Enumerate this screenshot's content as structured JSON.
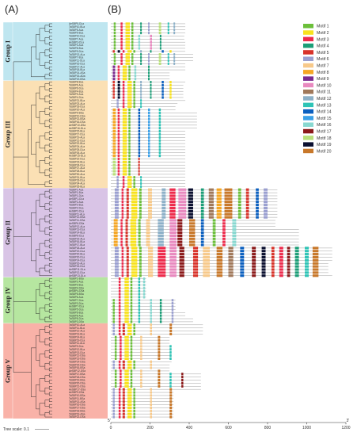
{
  "panels": {
    "a": "(A)",
    "b": "(B)"
  },
  "groups": [
    {
      "name": "Group I",
      "start": 0,
      "count": 19,
      "color": "#bfe6f0"
    },
    {
      "name": "Group III",
      "start": 19,
      "count": 35,
      "color": "#fbe0b4"
    },
    {
      "name": "Group II",
      "start": 54,
      "count": 29,
      "color": "#d9c4e6"
    },
    {
      "name": "Group IV",
      "start": 83,
      "count": 15,
      "color": "#b6e6a0"
    },
    {
      "name": "Group V",
      "start": 98,
      "count": 31,
      "color": "#f9b2a8"
    }
  ],
  "taxa": [
    "AeSBP5-DLa",
    "TaSBP10-BLa",
    "TaSBP5-ALa",
    "TaSBP5-BLa",
    "TaSBP10-DLa",
    "TaSBP7-ALa",
    "AeSBP3-DLa",
    "TaSBP3-ALa",
    "TaSBP8-BLa",
    "TaSBP9-DLa",
    "TaSBP13-ALa",
    "TaSBP7-BLa",
    "TaSBP11-DLa",
    "TaSBP16-DLa",
    "TaSBP17-ALa",
    "TaSBP18-BLa",
    "TaSBP14-ASa",
    "TaSBP15-ADa",
    "TaSBP19-BSa",
    "TaSBP8-BLa",
    "TaSBP6-ALa",
    "TaSBP6-DLa",
    "TaSBP4-BLa",
    "TaSBP9-ALa",
    "TaSBP4-DLa",
    "TaSBP21-BLa",
    "TaSBP23-ALa",
    "TaSBP18-DLa",
    "TaSBP20-ALa",
    "TaSBP9-BSa",
    "TaSBP10-DSa",
    "TaSBP13-BSa",
    "TaSBP16-DSa",
    "AeSBP10-DSa",
    "AeSBP16-DLa",
    "TaSBP15-BLa",
    "TaSBP17-DLa",
    "TaSBP19-ALa",
    "TaSBP21-DLa",
    "TaSBP22-BLa",
    "TaSBP24-ALa",
    "TaSBP25-DLa",
    "TaSBP26-ALa",
    "AeSBP15-DLa",
    "TaSBP22-DLa",
    "TaSBP23-BLa",
    "TaSBP24-DLa",
    "TaSBP27-ALa",
    "TaSBP28-BLa",
    "TaSBP30-ALa",
    "TaSBP31-BLa",
    "TaSBP33-DLa",
    "TaSBP34-ALa",
    "TaSBP35-BLa",
    "TaSBP1-ALa",
    "TaSBP1-BLa",
    "TaSBP1-DLa",
    "AeSBP1-DLa",
    "TaSBP2-ALa",
    "TaSBP2-BLa",
    "TaSBP2-DLa",
    "AeSBP2-DLa",
    "TaSBP11-ALa",
    "TaSBP12-BSa",
    "TaSBP11-DSa",
    "AeSBP6-DSa",
    "TaSBP12-ALa",
    "TaSBP13-DLa",
    "TaSBP14-BLa",
    "AeSBP8-DLa",
    "TaSBP15-ALa",
    "TaSBP16-BLa",
    "TaSBP17-BLa",
    "TaSBP18-ALa",
    "TaSBP19-DLa",
    "TaSBP20-BLa",
    "TaSBP20-DLa",
    "TaSBP14-DLa",
    "TaSBP16-ALa",
    "TaSBP15-DLa",
    "AeSBP11-DLa",
    "TaSBP12-DLa",
    "AeSBP13-DLa",
    "TaSBP1-BSa",
    "TaSBP2-ALa",
    "TaSBP3-BLa",
    "TaSBP4-DSa",
    "AeSBP4-DSa",
    "TaSBP5-BSa",
    "TaSBP6-ALa",
    "TaSBP7-DLa",
    "TaSBP3-DLa",
    "AeSBP7-DLa",
    "TaSBP5-DLa",
    "TaSBP6-BLa",
    "TaSBP8-ALa",
    "TaSBP8-DLa",
    "TaSBP3-DSa",
    "TaSBP10-ALa",
    "TaSBP11-BLa",
    "TaSBP12-ALa",
    "TaSBP13-BLa",
    "TaSBP14-BLa",
    "TaSBP19-DLa",
    "TaSBP11-ALa",
    "TaSBP9-DLa",
    "TaSBP12-BLa",
    "TaSBP13-DLa",
    "TaSBP12-DSa",
    "TaSBP13-DSa",
    "TaSBP14-DSa",
    "TaSBP15-DSa",
    "TaSBP16-BSa",
    "AeSBP12-DSa",
    "TaSBP17-BSa",
    "TaSBP18-DSa",
    "TaSBP19-BSa",
    "TaSBP20-DSa",
    "TaSBP21-DSa",
    "AeSBP17-DSa",
    "AeSBP9-DSa",
    "TaSBP10-BSa",
    "TaSBP11-BSa",
    "TaSBP13-ASa",
    "TaSBP16-DSa",
    "TaSBP17-DSa",
    "TaSBP18-BSa",
    "TaSBP19-ASa",
    "TaSBP22-DSa"
  ],
  "gene_lengths": [
    380,
    380,
    380,
    380,
    375,
    375,
    380,
    380,
    380,
    380,
    420,
    420,
    420,
    380,
    380,
    380,
    300,
    300,
    300,
    380,
    370,
    370,
    370,
    370,
    370,
    380,
    340,
    330,
    330,
    440,
    440,
    440,
    440,
    440,
    440,
    380,
    380,
    380,
    380,
    380,
    380,
    380,
    380,
    380,
    380,
    380,
    380,
    380,
    380,
    380,
    380,
    380,
    380,
    380,
    850,
    850,
    850,
    850,
    850,
    850,
    850,
    850,
    850,
    850,
    840,
    840,
    840,
    960,
    960,
    960,
    960,
    960,
    960,
    1130,
    1130,
    1130,
    1130,
    1130,
    1110,
    1110,
    1110,
    1110,
    1130,
    180,
    180,
    180,
    180,
    180,
    180,
    180,
    330,
    330,
    330,
    330,
    380,
    380,
    420,
    420,
    470,
    470,
    470,
    470,
    300,
    300,
    300,
    310,
    310,
    310,
    310,
    310,
    310,
    300,
    300,
    300,
    460,
    460,
    460,
    460,
    460,
    460,
    320,
    320,
    320,
    320,
    320,
    320,
    320,
    320,
    320
  ],
  "motif_layouts": [
    [
      [
        1,
        15,
        10
      ],
      [
        3,
        50,
        10
      ],
      [
        2,
        75,
        22
      ],
      [
        1,
        105,
        10
      ],
      [
        4,
        150,
        8
      ],
      [
        6,
        190,
        8
      ],
      [
        18,
        245,
        12
      ],
      [
        13,
        290,
        8
      ],
      [
        12,
        320,
        8
      ]
    ],
    [
      [
        1,
        15,
        10
      ],
      [
        3,
        50,
        10
      ],
      [
        2,
        75,
        22
      ],
      [
        1,
        105,
        10
      ],
      [
        16,
        140,
        10
      ],
      [
        10,
        200,
        10
      ],
      [
        4,
        250,
        8
      ]
    ],
    [
      [
        9,
        10,
        12
      ],
      [
        3,
        35,
        10
      ],
      [
        2,
        60,
        22
      ],
      [
        1,
        90,
        10
      ],
      [
        16,
        120,
        10
      ],
      [
        4,
        190,
        8
      ]
    ],
    [
      [
        5,
        10,
        10
      ],
      [
        19,
        35,
        12
      ],
      [
        3,
        60,
        10
      ],
      [
        2,
        85,
        22
      ],
      [
        1,
        115,
        10
      ],
      [
        12,
        150,
        8
      ],
      [
        4,
        200,
        8
      ],
      [
        14,
        260,
        10
      ],
      [
        2,
        300,
        10
      ]
    ],
    [
      [
        6,
        30,
        10
      ],
      [
        3,
        60,
        10
      ],
      [
        2,
        85,
        22
      ],
      [
        1,
        115,
        10
      ],
      [
        13,
        150,
        8
      ]
    ],
    [
      [
        8,
        10,
        15
      ],
      [
        3,
        35,
        10
      ],
      [
        2,
        60,
        22
      ],
      [
        1,
        90,
        10
      ],
      [
        14,
        140,
        10
      ],
      [
        15,
        190,
        10
      ],
      [
        13,
        245,
        10
      ]
    ],
    [
      [
        18,
        10,
        15
      ],
      [
        3,
        35,
        10
      ],
      [
        2,
        60,
        22
      ],
      [
        1,
        90,
        10
      ],
      [
        5,
        140,
        8
      ]
    ],
    [
      [
        6,
        20,
        20
      ],
      [
        3,
        55,
        10
      ],
      [
        5,
        80,
        12
      ],
      [
        2,
        105,
        30
      ],
      [
        1,
        145,
        12
      ],
      [
        7,
        190,
        20
      ],
      [
        12,
        260,
        20
      ],
      [
        3,
        300,
        30
      ],
      [
        10,
        345,
        40
      ],
      [
        19,
        395,
        25
      ],
      [
        4,
        460,
        15
      ],
      [
        11,
        500,
        25
      ],
      [
        8,
        540,
        25
      ],
      [
        20,
        580,
        40
      ],
      [
        1,
        650,
        15
      ],
      [
        5,
        690,
        15
      ],
      [
        14,
        740,
        15
      ],
      [
        6,
        780,
        20
      ]
    ],
    [
      [
        8,
        15,
        20
      ],
      [
        3,
        50,
        10
      ],
      [
        5,
        75,
        12
      ],
      [
        2,
        100,
        30
      ],
      [
        1,
        140,
        12
      ],
      [
        7,
        180,
        20
      ],
      [
        12,
        240,
        30
      ],
      [
        10,
        300,
        35
      ],
      [
        17,
        340,
        25
      ],
      [
        20,
        400,
        30
      ],
      [
        14,
        460,
        15
      ],
      [
        1,
        520,
        15
      ],
      [
        3,
        570,
        15
      ],
      [
        16,
        620,
        20
      ]
    ],
    [
      [
        6,
        20,
        20
      ],
      [
        3,
        55,
        10
      ],
      [
        5,
        80,
        12
      ],
      [
        2,
        105,
        30
      ],
      [
        1,
        145,
        12
      ],
      [
        7,
        190,
        25
      ],
      [
        3,
        240,
        40
      ],
      [
        10,
        300,
        35
      ],
      [
        17,
        350,
        25
      ],
      [
        5,
        420,
        25
      ],
      [
        7,
        470,
        35
      ],
      [
        20,
        540,
        30
      ],
      [
        11,
        600,
        25
      ],
      [
        14,
        660,
        20
      ],
      [
        17,
        720,
        20
      ],
      [
        19,
        770,
        20
      ],
      [
        5,
        820,
        15
      ],
      [
        3,
        860,
        20
      ],
      [
        17,
        900,
        15
      ],
      [
        4,
        940,
        20
      ],
      [
        13,
        990,
        20
      ],
      [
        20,
        1030,
        30
      ]
    ],
    [
      [
        3,
        40,
        10
      ],
      [
        2,
        70,
        22
      ],
      [
        1,
        100,
        10
      ],
      [
        13,
        140,
        10
      ],
      [
        16,
        165,
        10
      ]
    ],
    [
      [
        1,
        10,
        10
      ],
      [
        3,
        40,
        10
      ],
      [
        2,
        70,
        22
      ],
      [
        1,
        100,
        10
      ],
      [
        13,
        140,
        10
      ],
      [
        16,
        200,
        10
      ],
      [
        4,
        250,
        10
      ],
      [
        6,
        310,
        10
      ]
    ],
    [
      [
        6,
        10,
        10
      ],
      [
        3,
        40,
        10
      ],
      [
        5,
        60,
        12
      ],
      [
        2,
        85,
        22
      ],
      [
        1,
        115,
        10
      ],
      [
        7,
        200,
        10
      ],
      [
        20,
        300,
        12
      ]
    ],
    [
      [
        1,
        20,
        10
      ],
      [
        3,
        45,
        10
      ],
      [
        2,
        70,
        22
      ],
      [
        1,
        100,
        10
      ],
      [
        7,
        150,
        10
      ],
      [
        20,
        240,
        12
      ],
      [
        13,
        300,
        10
      ],
      [
        17,
        360,
        10
      ]
    ]
  ],
  "group_motif_layouts": [
    [
      0,
      0,
      0,
      0,
      1,
      1,
      1,
      1,
      1,
      3,
      0,
      0,
      0,
      0,
      2,
      2,
      2,
      2,
      2
    ],
    [
      3,
      3,
      3,
      3,
      3,
      3,
      4,
      4,
      4,
      5,
      5,
      5,
      5,
      5,
      5,
      5,
      5,
      5,
      5,
      5,
      5,
      5,
      5,
      5,
      5,
      6,
      6,
      6,
      6,
      6,
      6,
      4,
      4,
      4,
      4
    ],
    [
      7,
      7,
      7,
      7,
      7,
      7,
      7,
      7,
      7,
      7,
      8,
      8,
      8,
      8,
      8,
      8,
      8,
      8,
      8,
      9,
      9,
      9,
      9,
      9,
      9,
      9,
      9,
      9,
      9
    ],
    [
      10,
      10,
      10,
      10,
      10,
      10,
      10,
      11,
      11,
      11,
      11,
      11,
      11,
      11,
      11
    ],
    [
      12,
      12,
      12,
      12,
      13,
      13,
      13,
      13,
      13,
      13,
      13,
      13,
      12,
      12,
      12,
      13,
      13,
      13,
      13,
      13,
      13,
      12,
      12,
      12,
      12,
      12,
      12,
      12,
      12,
      12,
      12
    ]
  ],
  "axis": {
    "ticks": [
      0,
      200,
      400,
      600,
      800,
      1000,
      1200
    ],
    "max": 1200,
    "left_end": "5'",
    "right_end": "3'"
  },
  "tree_scale": "Tree scale: 0.1",
  "legend": [
    {
      "name": "Motif 1",
      "color": "#6bbf3a"
    },
    {
      "name": "Motif 2",
      "color": "#f8e21e"
    },
    {
      "name": "Motif 3",
      "color": "#ee2b4c"
    },
    {
      "name": "Motif 4",
      "color": "#1b9e77"
    },
    {
      "name": "Motif 5",
      "color": "#d8332a"
    },
    {
      "name": "Motif 6",
      "color": "#9a9fd0"
    },
    {
      "name": "Motif 7",
      "color": "#f7c98a"
    },
    {
      "name": "Motif 8",
      "color": "#f5a623"
    },
    {
      "name": "Motif 9",
      "color": "#7a2a8f"
    },
    {
      "name": "Motif 10",
      "color": "#e889bf"
    },
    {
      "name": "Motif 11",
      "color": "#a0785a"
    },
    {
      "name": "Motif 12",
      "color": "#8cb0c8"
    },
    {
      "name": "Motif 13",
      "color": "#2ec4b6"
    },
    {
      "name": "Motif 14",
      "color": "#0a5fbf"
    },
    {
      "name": "Motif 15",
      "color": "#3aa0e8"
    },
    {
      "name": "Motif 16",
      "color": "#88d8d0"
    },
    {
      "name": "Motif 17",
      "color": "#8b1a1a"
    },
    {
      "name": "Motif 18",
      "color": "#b9e07a"
    },
    {
      "name": "Motif 19",
      "color": "#0b1030"
    },
    {
      "name": "Motif 20",
      "color": "#c8782a"
    }
  ]
}
